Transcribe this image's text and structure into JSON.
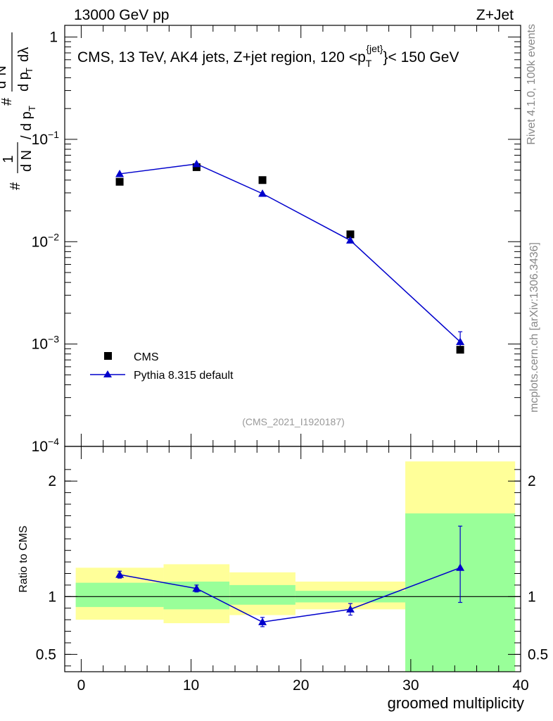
{
  "header": {
    "energy_label": "13000 GeV pp",
    "process_label": "Z+Jet",
    "analysis_id": "(CMS_2021_I1920187)",
    "side_label_top": "Rivet 4.1.0,  100k events",
    "side_label_bottom": "mcplots.cern.ch [arXiv:1306.3436]"
  },
  "chart_data": [
    {
      "type": "scatter",
      "panel": "main",
      "title": "CMS, 13 TeV, AK4 jets, Z+jet region, 120 <p_T^{jet}< 150 GeV",
      "title_parts": {
        "prefix": "CMS, 13 TeV, AK4 jets, Z+jet region, 120 <p",
        "sub": "T",
        "sup": "{jet}",
        "suffix": "}< 150 GeV"
      },
      "ylabel": "1/N dN/dp_T d^2N/dp_T dλ",
      "ylabel_parts": {
        "hash": "#",
        "one": "1",
        "dN": "d N",
        "slash": "/",
        "dp": "d p",
        "T": "T",
        "hash2": "#",
        "d2N": "d",
        "two": "2",
        "N": "N",
        "dp2": "d p",
        "T2": "T",
        "dlambda": "dλ"
      },
      "yscale": "log",
      "ylim": [
        0.0001,
        1.3
      ],
      "xlim": [
        -1.5,
        40
      ],
      "y_ticks": [
        {
          "value": 1,
          "base": "1",
          "exp": ""
        },
        {
          "value": 0.1,
          "base": "10",
          "exp": "−1"
        },
        {
          "value": 0.01,
          "base": "10",
          "exp": "−2"
        },
        {
          "value": 0.001,
          "base": "10",
          "exp": "−3"
        },
        {
          "value": 0.0001,
          "base": "10",
          "exp": "−4"
        }
      ],
      "legend": {
        "placement": "lower-left",
        "entries": [
          "CMS",
          "Pythia 8.315 default"
        ]
      },
      "series": [
        {
          "name": "CMS",
          "marker": "square",
          "color": "#000000",
          "x": [
            3.5,
            10.5,
            16.5,
            24.5,
            34.5
          ],
          "y": [
            0.0385,
            0.0535,
            0.04,
            0.0118,
            0.00088
          ]
        },
        {
          "name": "Pythia 8.315 default",
          "marker": "triangle",
          "color": "#0000cc",
          "x": [
            3.5,
            10.5,
            16.5,
            24.5,
            34.5
          ],
          "y": [
            0.046,
            0.0575,
            0.0295,
            0.0103,
            0.00105
          ],
          "yerr_low": [
            0.0,
            0.0,
            0.0,
            0.0,
            0.00018
          ],
          "yerr_high": [
            0.0,
            0.0,
            0.0,
            0.0,
            0.00027
          ]
        }
      ]
    },
    {
      "type": "scatter",
      "panel": "ratio",
      "xlabel": "groomed multiplicity",
      "ylabel": "Ratio to CMS",
      "ylim": [
        0.35,
        2.3
      ],
      "xlim": [
        -1.5,
        40
      ],
      "x_ticks": [
        "0",
        "10",
        "20",
        "30",
        "40"
      ],
      "y_ticks": [
        "0.5",
        "1",
        "2"
      ],
      "uncertainty_bands": [
        {
          "x_low": -0.5,
          "x_high": 7.5,
          "yellow": [
            0.8,
            1.25
          ],
          "green": [
            0.91,
            1.12
          ]
        },
        {
          "x_low": 7.5,
          "x_high": 13.5,
          "yellow": [
            0.77,
            1.28
          ],
          "green": [
            0.89,
            1.13
          ]
        },
        {
          "x_low": 13.5,
          "x_high": 19.5,
          "yellow": [
            0.84,
            1.21
          ],
          "green": [
            0.93,
            1.1
          ]
        },
        {
          "x_low": 19.5,
          "x_high": 29.5,
          "yellow": [
            0.89,
            1.13
          ],
          "green": [
            0.95,
            1.05
          ]
        },
        {
          "x_low": 29.5,
          "x_high": 39.5,
          "yellow": [
            0.35,
            2.17
          ],
          "green": [
            0.35,
            1.72
          ]
        }
      ],
      "series": [
        {
          "name": "Pythia 8.315 default",
          "marker": "triangle",
          "color": "#0000cc",
          "x": [
            3.5,
            10.5,
            16.5,
            24.5,
            34.5
          ],
          "y": [
            1.19,
            1.07,
            0.78,
            0.89,
            1.25
          ],
          "yerr_low": [
            0.03,
            0.03,
            0.04,
            0.05,
            0.3
          ],
          "yerr_high": [
            0.03,
            0.03,
            0.04,
            0.05,
            0.36
          ]
        }
      ]
    }
  ]
}
